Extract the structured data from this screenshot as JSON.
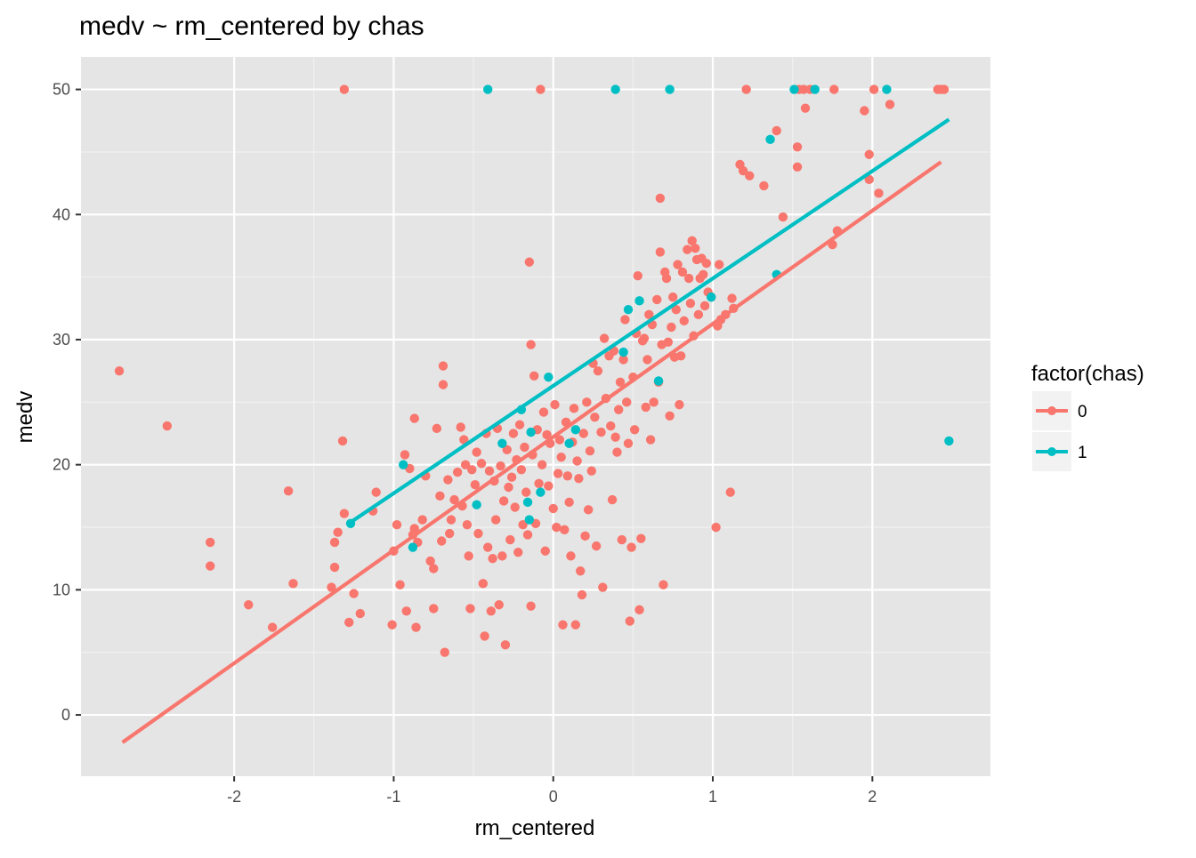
{
  "chart_data": {
    "type": "scatter",
    "title": "medv ~ rm_centered by chas",
    "xlabel": "rm_centered",
    "ylabel": "medv",
    "xlim": [
      -2.96,
      2.74
    ],
    "ylim": [
      -4.9,
      52.6
    ],
    "x_ticks": [
      -2,
      -1,
      0,
      1,
      2
    ],
    "y_ticks": [
      0,
      10,
      20,
      30,
      40,
      50
    ],
    "grid": true,
    "background": "#e5e5e5",
    "legend": {
      "title": "factor(chas)",
      "position": "right",
      "entries": [
        "0",
        "1"
      ]
    },
    "series": [
      {
        "name": "0",
        "color": "#f8766d",
        "points": [
          [
            -2.72,
            27.5
          ],
          [
            -2.42,
            23.1
          ],
          [
            -2.15,
            13.8
          ],
          [
            -2.15,
            11.9
          ],
          [
            -1.91,
            8.8
          ],
          [
            -1.76,
            7.0
          ],
          [
            -1.66,
            17.9
          ],
          [
            -1.63,
            10.5
          ],
          [
            -1.39,
            10.2
          ],
          [
            -1.37,
            13.8
          ],
          [
            -1.37,
            11.8
          ],
          [
            -1.35,
            14.6
          ],
          [
            -1.31,
            16.1
          ],
          [
            -1.32,
            21.9
          ],
          [
            -1.31,
            50.0
          ],
          [
            -1.28,
            7.4
          ],
          [
            -1.25,
            9.7
          ],
          [
            -1.21,
            8.1
          ],
          [
            -1.13,
            16.3
          ],
          [
            -1.11,
            17.8
          ],
          [
            -1.01,
            7.2
          ],
          [
            -1.0,
            13.1
          ],
          [
            -0.98,
            15.2
          ],
          [
            -0.96,
            10.4
          ],
          [
            -0.93,
            20.8
          ],
          [
            -0.92,
            8.3
          ],
          [
            -0.9,
            19.7
          ],
          [
            -0.88,
            14.4
          ],
          [
            -0.87,
            14.9
          ],
          [
            -0.87,
            23.7
          ],
          [
            -0.86,
            7.0
          ],
          [
            -0.85,
            13.8
          ],
          [
            -0.82,
            15.6
          ],
          [
            -0.8,
            19.1
          ],
          [
            -0.77,
            12.3
          ],
          [
            -0.75,
            11.7
          ],
          [
            -0.75,
            8.5
          ],
          [
            -0.73,
            22.9
          ],
          [
            -0.71,
            17.5
          ],
          [
            -0.7,
            13.9
          ],
          [
            -0.69,
            26.4
          ],
          [
            -0.69,
            27.9
          ],
          [
            -0.68,
            5.0
          ],
          [
            -0.66,
            18.8
          ],
          [
            -0.65,
            14.5
          ],
          [
            -0.64,
            15.6
          ],
          [
            -0.62,
            17.2
          ],
          [
            -0.6,
            19.4
          ],
          [
            -0.58,
            23.0
          ],
          [
            -0.57,
            16.7
          ],
          [
            -0.56,
            22.0
          ],
          [
            -0.55,
            20.0
          ],
          [
            -0.54,
            15.2
          ],
          [
            -0.53,
            12.7
          ],
          [
            -0.52,
            8.5
          ],
          [
            -0.51,
            19.6
          ],
          [
            -0.49,
            18.4
          ],
          [
            -0.48,
            21.0
          ],
          [
            -0.47,
            14.5
          ],
          [
            -0.45,
            20.1
          ],
          [
            -0.44,
            10.5
          ],
          [
            -0.43,
            6.3
          ],
          [
            -0.42,
            22.5
          ],
          [
            -0.41,
            13.4
          ],
          [
            -0.4,
            19.5
          ],
          [
            -0.39,
            8.3
          ],
          [
            -0.38,
            12.5
          ],
          [
            -0.37,
            18.7
          ],
          [
            -0.36,
            15.6
          ],
          [
            -0.35,
            22.9
          ],
          [
            -0.34,
            8.8
          ],
          [
            -0.33,
            19.9
          ],
          [
            -0.32,
            12.7
          ],
          [
            -0.31,
            17.1
          ],
          [
            -0.3,
            5.6
          ],
          [
            -0.29,
            21.2
          ],
          [
            -0.28,
            18.2
          ],
          [
            -0.27,
            14.0
          ],
          [
            -0.26,
            19.0
          ],
          [
            -0.25,
            22.5
          ],
          [
            -0.24,
            16.6
          ],
          [
            -0.23,
            20.4
          ],
          [
            -0.22,
            13.0
          ],
          [
            -0.21,
            23.2
          ],
          [
            -0.2,
            19.6
          ],
          [
            -0.19,
            15.2
          ],
          [
            -0.18,
            21.4
          ],
          [
            -0.17,
            17.8
          ],
          [
            -0.16,
            14.4
          ],
          [
            -0.15,
            36.2
          ],
          [
            -0.14,
            29.6
          ],
          [
            -0.14,
            8.7
          ],
          [
            -0.13,
            20.8
          ],
          [
            -0.12,
            27.1
          ],
          [
            -0.11,
            15.3
          ],
          [
            -0.1,
            22.8
          ],
          [
            -0.09,
            18.5
          ],
          [
            -0.08,
            50.0
          ],
          [
            -0.07,
            20.0
          ],
          [
            -0.06,
            24.2
          ],
          [
            -0.05,
            13.1
          ],
          [
            -0.04,
            22.4
          ],
          [
            -0.03,
            18.3
          ],
          [
            -0.02,
            21.7
          ],
          [
            0.0,
            16.5
          ],
          [
            0.01,
            24.8
          ],
          [
            0.02,
            15.0
          ],
          [
            0.03,
            19.3
          ],
          [
            0.04,
            22.0
          ],
          [
            0.05,
            20.6
          ],
          [
            0.06,
            7.2
          ],
          [
            0.07,
            14.8
          ],
          [
            0.08,
            23.4
          ],
          [
            0.09,
            19.1
          ],
          [
            0.1,
            17.0
          ],
          [
            0.11,
            12.7
          ],
          [
            0.12,
            21.8
          ],
          [
            0.13,
            24.5
          ],
          [
            0.14,
            7.2
          ],
          [
            0.15,
            20.3
          ],
          [
            0.16,
            18.9
          ],
          [
            0.17,
            11.5
          ],
          [
            0.18,
            9.6
          ],
          [
            0.19,
            22.5
          ],
          [
            0.2,
            14.3
          ],
          [
            0.21,
            25.0
          ],
          [
            0.22,
            16.4
          ],
          [
            0.23,
            21.1
          ],
          [
            0.24,
            19.5
          ],
          [
            0.25,
            28.1
          ],
          [
            0.26,
            23.8
          ],
          [
            0.27,
            13.5
          ],
          [
            0.28,
            27.5
          ],
          [
            0.3,
            22.6
          ],
          [
            0.31,
            10.2
          ],
          [
            0.32,
            30.1
          ],
          [
            0.33,
            25.3
          ],
          [
            0.35,
            28.7
          ],
          [
            0.36,
            23.1
          ],
          [
            0.37,
            17.2
          ],
          [
            0.38,
            29.1
          ],
          [
            0.39,
            22.2
          ],
          [
            0.4,
            21.0
          ],
          [
            0.41,
            24.4
          ],
          [
            0.42,
            26.6
          ],
          [
            0.43,
            14.0
          ],
          [
            0.44,
            28.4
          ],
          [
            0.45,
            31.6
          ],
          [
            0.46,
            25.0
          ],
          [
            0.47,
            21.7
          ],
          [
            0.48,
            7.5
          ],
          [
            0.49,
            13.4
          ],
          [
            0.5,
            27.0
          ],
          [
            0.51,
            22.8
          ],
          [
            0.52,
            30.5
          ],
          [
            0.53,
            35.1
          ],
          [
            0.54,
            8.4
          ],
          [
            0.55,
            14.1
          ],
          [
            0.56,
            29.9
          ],
          [
            0.57,
            30.1
          ],
          [
            0.58,
            24.6
          ],
          [
            0.59,
            28.4
          ],
          [
            0.6,
            32.0
          ],
          [
            0.61,
            22.0
          ],
          [
            0.62,
            31.2
          ],
          [
            0.63,
            25.0
          ],
          [
            0.65,
            33.2
          ],
          [
            0.66,
            26.6
          ],
          [
            0.67,
            37.0
          ],
          [
            0.67,
            41.3
          ],
          [
            0.68,
            29.6
          ],
          [
            0.69,
            10.4
          ],
          [
            0.7,
            35.4
          ],
          [
            0.71,
            34.9
          ],
          [
            0.72,
            29.8
          ],
          [
            0.73,
            23.9
          ],
          [
            0.74,
            31.0
          ],
          [
            0.75,
            33.4
          ],
          [
            0.76,
            28.6
          ],
          [
            0.77,
            32.4
          ],
          [
            0.78,
            36.0
          ],
          [
            0.79,
            24.8
          ],
          [
            0.8,
            28.7
          ],
          [
            0.81,
            35.4
          ],
          [
            0.82,
            31.5
          ],
          [
            0.84,
            37.2
          ],
          [
            0.85,
            34.9
          ],
          [
            0.86,
            32.9
          ],
          [
            0.87,
            37.9
          ],
          [
            0.88,
            30.3
          ],
          [
            0.89,
            37.3
          ],
          [
            0.9,
            36.4
          ],
          [
            0.91,
            32.0
          ],
          [
            0.92,
            34.9
          ],
          [
            0.93,
            36.5
          ],
          [
            0.94,
            35.2
          ],
          [
            0.95,
            32.7
          ],
          [
            0.96,
            36.1
          ],
          [
            0.97,
            33.8
          ],
          [
            0.99,
            33.4
          ],
          [
            1.02,
            15.0
          ],
          [
            1.03,
            31.1
          ],
          [
            1.04,
            36.0
          ],
          [
            1.05,
            31.6
          ],
          [
            1.08,
            32.0
          ],
          [
            1.11,
            17.8
          ],
          [
            1.12,
            33.3
          ],
          [
            1.13,
            32.5
          ],
          [
            1.17,
            44.0
          ],
          [
            1.19,
            43.5
          ],
          [
            1.21,
            50.0
          ],
          [
            1.23,
            43.1
          ],
          [
            1.32,
            42.3
          ],
          [
            1.4,
            46.7
          ],
          [
            1.44,
            39.8
          ],
          [
            1.53,
            43.8
          ],
          [
            1.53,
            45.4
          ],
          [
            1.54,
            50.0
          ],
          [
            1.57,
            50.0
          ],
          [
            1.58,
            48.5
          ],
          [
            1.61,
            50.0
          ],
          [
            1.76,
            50.0
          ],
          [
            1.75,
            37.6
          ],
          [
            1.78,
            38.7
          ],
          [
            1.95,
            48.3
          ],
          [
            1.98,
            44.8
          ],
          [
            1.98,
            42.8
          ],
          [
            2.01,
            50.0
          ],
          [
            2.04,
            41.7
          ],
          [
            2.11,
            48.8
          ],
          [
            2.41,
            50.0
          ],
          [
            2.43,
            50.0
          ],
          [
            2.45,
            50.0
          ]
        ],
        "fit": [
          [
            -2.7,
            -2.2
          ],
          [
            2.43,
            44.2
          ]
        ]
      },
      {
        "name": "1",
        "color": "#00bfc4",
        "points": [
          [
            -1.27,
            15.3
          ],
          [
            -0.94,
            20.0
          ],
          [
            -0.88,
            13.4
          ],
          [
            -0.48,
            16.8
          ],
          [
            -0.41,
            50.0
          ],
          [
            -0.32,
            21.7
          ],
          [
            -0.2,
            24.4
          ],
          [
            -0.16,
            17.0
          ],
          [
            -0.15,
            15.6
          ],
          [
            -0.14,
            22.6
          ],
          [
            -0.08,
            17.8
          ],
          [
            -0.03,
            27.0
          ],
          [
            0.1,
            21.7
          ],
          [
            0.14,
            22.8
          ],
          [
            0.39,
            50.0
          ],
          [
            0.44,
            29.0
          ],
          [
            0.47,
            32.4
          ],
          [
            0.54,
            33.1
          ],
          [
            0.66,
            26.7
          ],
          [
            0.73,
            50.0
          ],
          [
            0.99,
            33.4
          ],
          [
            1.36,
            46.0
          ],
          [
            1.4,
            35.2
          ],
          [
            1.51,
            50.0
          ],
          [
            1.64,
            50.0
          ],
          [
            2.09,
            50.0
          ],
          [
            2.48,
            21.9
          ]
        ],
        "fit": [
          [
            -1.27,
            15.4
          ],
          [
            2.48,
            47.6
          ]
        ]
      }
    ]
  }
}
